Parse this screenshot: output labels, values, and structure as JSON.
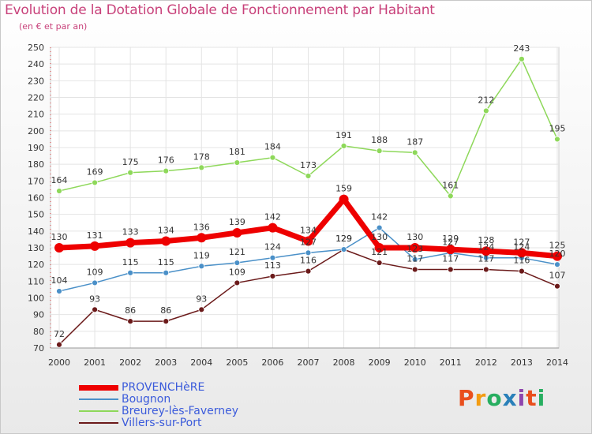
{
  "header": {
    "title": "Evolution de la Dotation Globale de Fonctionnement par Habitant",
    "subtitle": "(en € et par an)"
  },
  "logo": {
    "text": "Proxiti",
    "colors": [
      "#e94f1d",
      "#f39c12",
      "#27ae60",
      "#2980b9",
      "#8e44ad",
      "#e94f1d",
      "#27ae60"
    ]
  },
  "chart_data": {
    "type": "line",
    "title": "Evolution de la Dotation Globale de Fonctionnement par Habitant",
    "subtitle": "(en € et par an)",
    "xlabel": "",
    "ylabel": "",
    "categories": [
      "2000",
      "2001",
      "2002",
      "2003",
      "2004",
      "2005",
      "2006",
      "2007",
      "2008",
      "2009",
      "2010",
      "2011",
      "2012",
      "2013",
      "2014"
    ],
    "ylim": [
      70,
      250
    ],
    "yticks": [
      70,
      80,
      90,
      100,
      110,
      120,
      130,
      140,
      150,
      160,
      170,
      180,
      190,
      200,
      210,
      220,
      230,
      240,
      250
    ],
    "grid": true,
    "legend_position": "bottom-left",
    "series": [
      {
        "name": "PROVENCHèRE",
        "color": "#ee0000",
        "values": [
          130,
          131,
          133,
          134,
          136,
          139,
          142,
          134,
          159,
          130,
          130,
          129,
          128,
          127,
          125
        ],
        "labels": [
          "130",
          "131",
          "133",
          "134",
          "136",
          "139",
          "142",
          "134",
          "159",
          "130",
          "130",
          "129",
          "128",
          "127",
          "125"
        ]
      },
      {
        "name": "Bougnon",
        "color": "#4a90c8",
        "values": [
          104,
          109,
          115,
          115,
          119,
          121,
          124,
          127,
          129,
          142,
          123,
          127,
          124,
          124,
          120
        ],
        "labels": [
          "104",
          "109",
          "115",
          "115",
          "119",
          "121",
          "124",
          "127",
          "129",
          "142",
          "123",
          "127",
          "124",
          "124",
          "120"
        ]
      },
      {
        "name": "Breurey-lès-Faverney",
        "color": "#8ed85a",
        "values": [
          164,
          169,
          175,
          176,
          178,
          181,
          184,
          173,
          191,
          188,
          187,
          161,
          212,
          243,
          195
        ],
        "labels": [
          "164",
          "169",
          "175",
          "176",
          "178",
          "181",
          "184",
          "173",
          "191",
          "188",
          "187",
          "161",
          "212",
          "243",
          "195"
        ]
      },
      {
        "name": "Villers-sur-Port",
        "color": "#6b1a1a",
        "values": [
          72,
          93,
          86,
          86,
          93,
          109,
          113,
          116,
          129,
          121,
          117,
          117,
          117,
          116,
          107
        ],
        "labels": [
          "72",
          "93",
          "86",
          "86",
          "93",
          "109",
          "113",
          "116",
          "129",
          "121",
          "117",
          "117",
          "117",
          "116",
          "107"
        ]
      }
    ]
  }
}
